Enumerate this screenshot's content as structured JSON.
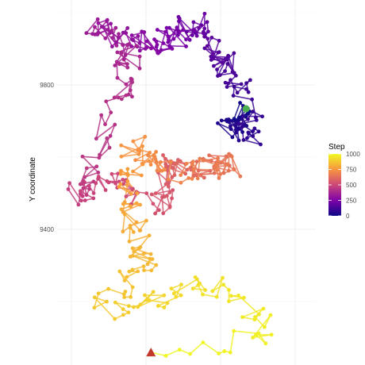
{
  "chart_data": {
    "type": "scatter",
    "xlabel": "",
    "ylabel": "Y coordinate",
    "y_ticks": [
      9400,
      9800
    ],
    "grid": true,
    "ylim_visible": [
      9030,
      10035
    ],
    "legend": {
      "title": "Step",
      "position": "right",
      "ticks": [
        0,
        250,
        500,
        750,
        1000
      ],
      "colorscale": [
        "#0d0887",
        "#7e03a8",
        "#cc4778",
        "#f89540",
        "#f0f921"
      ]
    },
    "start_marker": {
      "shape": "circle",
      "color": "#4caf50",
      "step": 0
    },
    "end_marker": {
      "shape": "triangle",
      "color": "#c0392b",
      "step": 1000
    },
    "path_keypoints": [
      {
        "step": 0,
        "x": 2343,
        "y": 9734
      },
      {
        "step": 40,
        "x": 2300,
        "y": 9680
      },
      {
        "step": 80,
        "x": 2360,
        "y": 9660
      },
      {
        "step": 120,
        "x": 2325,
        "y": 9830
      },
      {
        "step": 160,
        "x": 2270,
        "y": 9880
      },
      {
        "step": 200,
        "x": 2230,
        "y": 9970
      },
      {
        "step": 250,
        "x": 2170,
        "y": 9920
      },
      {
        "step": 300,
        "x": 2080,
        "y": 9920
      },
      {
        "step": 340,
        "x": 2000,
        "y": 9960
      },
      {
        "step": 380,
        "x": 2080,
        "y": 9870
      },
      {
        "step": 410,
        "x": 2070,
        "y": 9780
      },
      {
        "step": 440,
        "x": 2000,
        "y": 9580
      },
      {
        "step": 470,
        "x": 1950,
        "y": 9490
      },
      {
        "step": 500,
        "x": 2040,
        "y": 9540
      },
      {
        "step": 540,
        "x": 2150,
        "y": 9460
      },
      {
        "step": 580,
        "x": 2160,
        "y": 9580
      },
      {
        "step": 620,
        "x": 2250,
        "y": 9570
      },
      {
        "step": 660,
        "x": 2310,
        "y": 9580
      },
      {
        "step": 700,
        "x": 2180,
        "y": 9550
      },
      {
        "step": 740,
        "x": 2090,
        "y": 9640
      },
      {
        "step": 780,
        "x": 2080,
        "y": 9500
      },
      {
        "step": 820,
        "x": 2100,
        "y": 9360
      },
      {
        "step": 850,
        "x": 2120,
        "y": 9300
      },
      {
        "step": 880,
        "x": 2020,
        "y": 9180
      },
      {
        "step": 910,
        "x": 2150,
        "y": 9200
      },
      {
        "step": 940,
        "x": 2250,
        "y": 9250
      },
      {
        "step": 960,
        "x": 2350,
        "y": 9180
      },
      {
        "step": 980,
        "x": 2390,
        "y": 9100
      },
      {
        "step": 1000,
        "x": 2129,
        "y": 9059
      }
    ]
  }
}
